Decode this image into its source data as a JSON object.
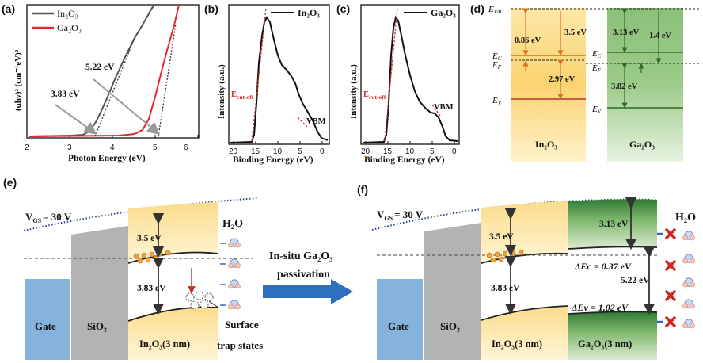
{
  "panels": {
    "a": {
      "label": "(a)",
      "xlabel": "Photon Energy (eV)",
      "ylabel": "(αhν)² (cm⁻¹eV)²",
      "legend": [
        "In₂O₃",
        "Ga₂O₃"
      ],
      "annotations": [
        "5.22 eV",
        "3.83 eV"
      ],
      "xticks": [
        "2",
        "3",
        "4",
        "5",
        "6"
      ]
    },
    "b": {
      "label": "(b)",
      "legend": "In₂O₃",
      "ylabel": "Intensity (a.u.)",
      "xlabel": "Binding Energy (eV)",
      "annotations": [
        "E",
        "cut-off",
        "VBM"
      ],
      "xticks": [
        "20",
        "15",
        "10",
        "5",
        "0"
      ]
    },
    "c": {
      "label": "(c)",
      "legend": "Ga₂O₃",
      "ylabel": "Intensity (a.u.)",
      "xlabel": "Binding Energy (eV)",
      "annotations": [
        "E",
        "cut-off",
        "VBM"
      ],
      "xticks": [
        "20",
        "15",
        "10",
        "5",
        "0"
      ]
    },
    "d": {
      "label": "(d)",
      "levels": [
        "E",
        "VAC",
        "E",
        "C",
        "E",
        "F",
        "E",
        "V"
      ],
      "in2o3_values": [
        "0.86 eV",
        "3.5 eV",
        "2.97 eV"
      ],
      "ga2o3_values": [
        "3.13 eV",
        "1.4 eV",
        "3.82 eV"
      ],
      "in2o3_label": "In₂O₃",
      "ga2o3_label": "Ga₂O₃"
    },
    "e": {
      "label": "(e)",
      "vgs": "V",
      "vgs_sub": "GS",
      "vgs_value": "= 30 V",
      "h2o": "H₂O",
      "barrier1": "3.5 eV",
      "gap1": "3.83 eV",
      "gate": "Gate",
      "sio2": "SiO₂",
      "channel": "In₂O₃(3 nm)",
      "trap_line1": "Surface",
      "trap_line2": "trap states"
    },
    "arrow": {
      "line1": "In-situ Ga₂O₃",
      "line2": "passivation"
    },
    "f": {
      "label": "(f)",
      "vgs": "V",
      "vgs_sub": "GS",
      "vgs_value": "= 30 V",
      "h2o": "H₂O",
      "barrier1": "3.5 eV",
      "barrier2": "3.13 eV",
      "gap1": "3.83 eV",
      "gap2": "5.22 eV",
      "delta_ec": "ΔEc = 0.37 eV",
      "delta_ev": "ΔEv = 1.02 eV",
      "gate": "Gate",
      "sio2": "SiO₂",
      "channel1": "In₂O₃(3 nm)",
      "channel2": "Ga₂O₃(3 nm)"
    }
  },
  "colors": {
    "in2o3_line": "#555555",
    "ga2o3_line": "#e8262b",
    "yellow": "#fbd77a",
    "green": "#7eb36a",
    "gate_blue": "#7fb0dd",
    "sio2_grey": "#b3b3b3",
    "arrow_blue": "#2f6fbf"
  }
}
